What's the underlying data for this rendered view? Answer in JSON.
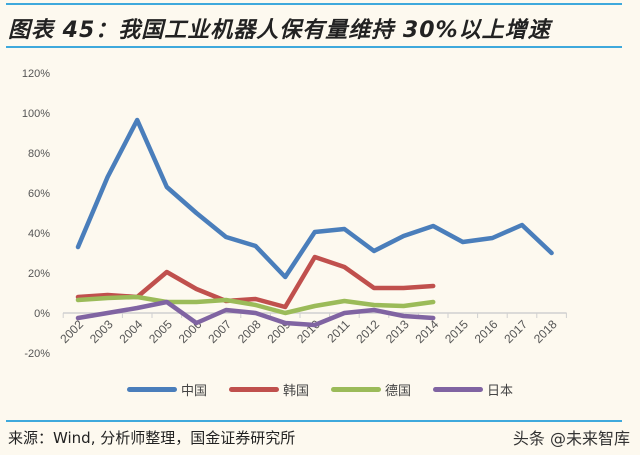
{
  "title": "图表 45：我国工业机器人保有量维持 30%以上增速",
  "source": "来源：Wind, 分析师整理，国金证券研究所",
  "watermark": "头条 @未来智库",
  "chart_data": {
    "type": "line",
    "title": "",
    "xlabel": "",
    "ylabel": "",
    "categories": [
      "2002",
      "2003",
      "2004",
      "2005",
      "2006",
      "2007",
      "2008",
      "2009",
      "2010",
      "2011",
      "2012",
      "2013",
      "2014",
      "2015",
      "2016",
      "2017",
      "2018"
    ],
    "yticks": [
      "-20%",
      "0%",
      "20%",
      "40%",
      "60%",
      "80%",
      "100%",
      "120%"
    ],
    "ylim": [
      -20,
      120
    ],
    "grid": false,
    "legend_position": "bottom",
    "series": [
      {
        "name": "中国",
        "color": "#4a7ebb",
        "values": [
          33,
          68,
          96.5,
          63,
          50,
          38,
          33.5,
          18,
          40.5,
          42,
          31,
          38.5,
          43.5,
          35.5,
          37.5,
          44,
          30
        ]
      },
      {
        "name": "韩国",
        "color": "#c0504d",
        "values": [
          8,
          9,
          8,
          20.5,
          12,
          6,
          7,
          3,
          28,
          23,
          12.5,
          12.5,
          13.5,
          null,
          null,
          null,
          null
        ]
      },
      {
        "name": "德国",
        "color": "#9bbb59",
        "values": [
          6.5,
          7.5,
          8,
          5.5,
          5.5,
          6.5,
          4,
          0,
          3.5,
          6,
          4,
          3.5,
          5.5,
          null,
          null,
          null,
          null
        ]
      },
      {
        "name": "日本",
        "color": "#8064a2",
        "values": [
          -2.5,
          0,
          2.5,
          5.5,
          -5,
          1.5,
          0,
          -5,
          -6,
          0,
          1.5,
          -1.5,
          -2.5,
          null,
          null,
          null,
          null
        ]
      }
    ]
  }
}
